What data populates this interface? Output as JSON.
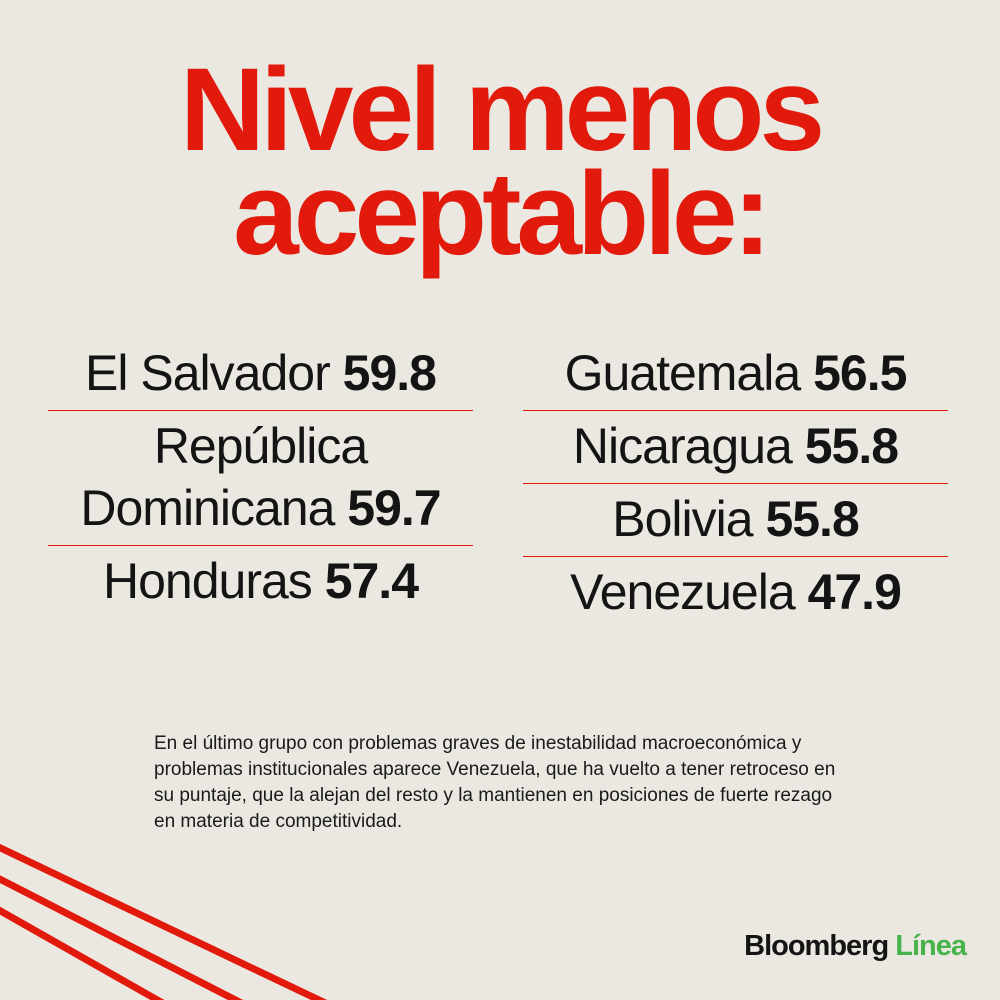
{
  "title": {
    "line1": "Nivel menos",
    "line2": "aceptable:"
  },
  "colors": {
    "accent": "#e21a0c",
    "background": "#ebe8e2",
    "text": "#141414",
    "logo_green": "#47b34a"
  },
  "left_column": [
    {
      "name": "El Salvador",
      "value": "59.8"
    },
    {
      "name_line1": "República",
      "name": "Dominicana",
      "value": "59.7"
    },
    {
      "name": "Honduras",
      "value": "57.4"
    }
  ],
  "right_column": [
    {
      "name": "Guatemala",
      "value": "56.5"
    },
    {
      "name": "Nicaragua",
      "value": "55.8"
    },
    {
      "name": "Bolivia",
      "value": "55.8"
    },
    {
      "name": "Venezuela",
      "value": "47.9"
    }
  ],
  "note": "En el último grupo con problemas graves de inestabilidad macroeconómica y problemas institucionales aparece Venezuela, que ha vuelto a tener retroceso en su puntaje, que la alejan del resto y la mantienen en posiciones de fuerte rezago en materia de competitividad.",
  "logo": {
    "brand": "Bloomberg",
    "sub": "Línea"
  }
}
